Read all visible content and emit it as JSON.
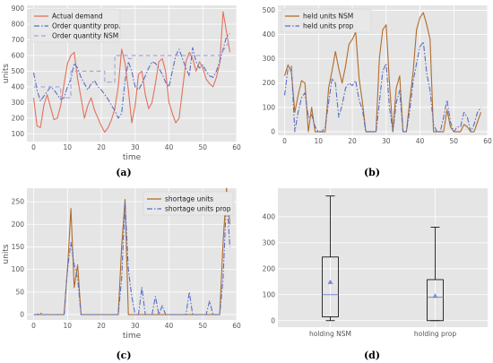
{
  "chart_data": [
    {
      "type": "line",
      "caption": "(a)",
      "xlabel": "time",
      "ylabel": "units",
      "xlim": [
        -2,
        60
      ],
      "ylim": [
        50,
        920
      ],
      "xticks": [
        0,
        10,
        20,
        30,
        40,
        50,
        60
      ],
      "yticks": [
        100,
        200,
        300,
        400,
        500,
        600,
        700,
        800,
        900
      ],
      "legend_position": "upper-left",
      "grid": true,
      "series": [
        {
          "name": "Actual demand",
          "color": "#e2725b",
          "style": "solid",
          "x": [
            0,
            1,
            2,
            3,
            4,
            5,
            6,
            7,
            8,
            9,
            10,
            11,
            12,
            13,
            14,
            15,
            16,
            17,
            18,
            19,
            20,
            21,
            22,
            23,
            24,
            25,
            26,
            27,
            28,
            29,
            30,
            31,
            32,
            33,
            34,
            35,
            36,
            37,
            38,
            39,
            40,
            41,
            42,
            43,
            44,
            45,
            46,
            47,
            48,
            49,
            50,
            51,
            52,
            53,
            54,
            55,
            56,
            57,
            58
          ],
          "values": [
            330,
            150,
            140,
            280,
            350,
            270,
            190,
            200,
            280,
            420,
            550,
            600,
            620,
            450,
            330,
            200,
            280,
            330,
            250,
            200,
            150,
            110,
            140,
            190,
            260,
            400,
            640,
            550,
            380,
            170,
            280,
            480,
            500,
            350,
            260,
            300,
            420,
            560,
            580,
            500,
            300,
            230,
            170,
            200,
            380,
            560,
            620,
            580,
            500,
            560,
            520,
            450,
            420,
            400,
            460,
            550,
            880,
            750,
            620
          ]
        },
        {
          "name": "Order quantity prop.",
          "color": "#5b6cc4",
          "style": "dashdot",
          "x": [
            0,
            1,
            2,
            3,
            4,
            5,
            6,
            7,
            8,
            9,
            10,
            11,
            12,
            13,
            14,
            15,
            16,
            17,
            18,
            19,
            20,
            21,
            22,
            23,
            24,
            25,
            26,
            27,
            28,
            29,
            30,
            31,
            32,
            33,
            34,
            35,
            36,
            37,
            38,
            39,
            40,
            41,
            42,
            43,
            44,
            45,
            46,
            47,
            48,
            49,
            50,
            51,
            52,
            53,
            54,
            55,
            56,
            57,
            58
          ],
          "values": [
            490,
            380,
            310,
            340,
            370,
            400,
            380,
            350,
            320,
            330,
            400,
            450,
            550,
            520,
            460,
            420,
            380,
            420,
            440,
            400,
            380,
            350,
            320,
            280,
            250,
            200,
            230,
            440,
            560,
            500,
            400,
            380,
            420,
            470,
            520,
            560,
            550,
            520,
            480,
            430,
            400,
            500,
            600,
            640,
            580,
            520,
            470,
            650,
            560,
            520,
            540,
            500,
            470,
            460,
            500,
            560,
            640,
            720,
            740
          ]
        },
        {
          "name": "Order quantity NSM",
          "color": "#a9a2dc",
          "style": "dashed",
          "x": [
            0,
            2,
            2,
            8,
            8,
            11,
            11,
            21,
            21,
            24,
            24,
            28,
            28,
            29,
            29,
            55,
            55,
            56,
            57,
            58
          ],
          "values": [
            400,
            400,
            400,
            400,
            330,
            330,
            500,
            500,
            430,
            430,
            600,
            600,
            580,
            580,
            600,
            600,
            600,
            630,
            660,
            700
          ]
        }
      ]
    },
    {
      "type": "line",
      "caption": "(b)",
      "xlabel": "",
      "ylabel": "",
      "xlim": [
        -2,
        60
      ],
      "ylim": [
        -15,
        520
      ],
      "xticks": [
        0,
        10,
        20,
        30,
        40,
        50,
        60
      ],
      "yticks": [
        0,
        100,
        200,
        300,
        400,
        500
      ],
      "legend_position": "upper-left",
      "grid": true,
      "series": [
        {
          "name": "held units NSM",
          "color": "#b06c2c",
          "style": "solid",
          "x": [
            0,
            1,
            2,
            3,
            4,
            5,
            6,
            7,
            8,
            9,
            10,
            11,
            12,
            13,
            14,
            15,
            16,
            17,
            18,
            19,
            20,
            21,
            22,
            23,
            24,
            25,
            26,
            27,
            28,
            29,
            30,
            31,
            32,
            33,
            34,
            35,
            36,
            37,
            38,
            39,
            40,
            41,
            42,
            43,
            44,
            45,
            46,
            47,
            48,
            49,
            50,
            51,
            52,
            53,
            54,
            55,
            56,
            57,
            58
          ],
          "values": [
            230,
            275,
            245,
            80,
            150,
            210,
            200,
            0,
            100,
            0,
            0,
            0,
            0,
            180,
            250,
            330,
            260,
            200,
            270,
            360,
            380,
            410,
            220,
            120,
            0,
            0,
            0,
            0,
            300,
            420,
            440,
            200,
            0,
            180,
            230,
            0,
            0,
            130,
            250,
            420,
            470,
            490,
            440,
            380,
            0,
            0,
            0,
            0,
            90,
            20,
            0,
            0,
            0,
            30,
            20,
            0,
            0,
            40,
            80
          ]
        },
        {
          "name": "held units prop",
          "color": "#5b6cc4",
          "style": "dashdot",
          "x": [
            0,
            1,
            2,
            3,
            4,
            5,
            6,
            7,
            8,
            9,
            10,
            11,
            12,
            13,
            14,
            15,
            16,
            17,
            18,
            19,
            20,
            21,
            22,
            23,
            24,
            25,
            26,
            27,
            28,
            29,
            30,
            31,
            32,
            33,
            34,
            35,
            36,
            37,
            38,
            39,
            40,
            41,
            42,
            43,
            44,
            45,
            46,
            47,
            48,
            49,
            50,
            51,
            52,
            53,
            54,
            55,
            56,
            57,
            58
          ],
          "values": [
            150,
            260,
            270,
            0,
            80,
            140,
            160,
            60,
            70,
            20,
            0,
            0,
            20,
            120,
            220,
            200,
            60,
            110,
            180,
            200,
            190,
            210,
            130,
            90,
            0,
            0,
            0,
            0,
            120,
            250,
            280,
            100,
            0,
            120,
            170,
            0,
            0,
            90,
            210,
            280,
            350,
            370,
            240,
            170,
            30,
            0,
            0,
            60,
            130,
            40,
            0,
            20,
            20,
            80,
            60,
            0,
            30,
            80,
            100
          ]
        }
      ]
    },
    {
      "type": "line",
      "caption": "(c)",
      "xlabel": "time",
      "ylabel": "units",
      "xlim": [
        -2,
        60
      ],
      "ylim": [
        -12,
        280
      ],
      "xticks": [
        0,
        10,
        20,
        30,
        40,
        50,
        60
      ],
      "yticks": [
        0,
        50,
        100,
        150,
        200,
        250
      ],
      "legend_position": "upper-right",
      "grid": true,
      "series": [
        {
          "name": "shortage units",
          "color": "#b06c2c",
          "style": "solid",
          "x": [
            0,
            1,
            2,
            3,
            4,
            5,
            6,
            7,
            8,
            9,
            10,
            11,
            12,
            13,
            14,
            15,
            16,
            17,
            18,
            19,
            20,
            21,
            22,
            23,
            24,
            25,
            26,
            27,
            28,
            29,
            30,
            31,
            32,
            33,
            34,
            35,
            36,
            37,
            38,
            39,
            40,
            41,
            42,
            43,
            44,
            45,
            46,
            47,
            48,
            49,
            50,
            51,
            52,
            53,
            54,
            55,
            56,
            57,
            58
          ],
          "values": [
            0,
            0,
            0,
            0,
            0,
            0,
            0,
            0,
            0,
            0,
            100,
            235,
            60,
            110,
            0,
            0,
            0,
            0,
            0,
            0,
            0,
            0,
            0,
            0,
            0,
            0,
            150,
            255,
            0,
            0,
            0,
            0,
            0,
            0,
            0,
            0,
            0,
            0,
            0,
            0,
            0,
            0,
            0,
            0,
            0,
            0,
            0,
            0,
            0,
            0,
            0,
            0,
            0,
            0,
            0,
            0,
            160,
            280,
            200
          ]
        },
        {
          "name": "shortage units prop",
          "color": "#5b6cc4",
          "style": "dashdot",
          "x": [
            0,
            1,
            2,
            3,
            4,
            5,
            6,
            7,
            8,
            9,
            10,
            11,
            12,
            13,
            14,
            15,
            16,
            17,
            18,
            19,
            20,
            21,
            22,
            23,
            24,
            25,
            26,
            27,
            28,
            29,
            30,
            31,
            32,
            33,
            34,
            35,
            36,
            37,
            38,
            39,
            40,
            41,
            42,
            43,
            44,
            45,
            46,
            47,
            48,
            49,
            50,
            51,
            52,
            53,
            54,
            55,
            56,
            57,
            58
          ],
          "values": [
            0,
            0,
            3,
            0,
            0,
            0,
            0,
            0,
            0,
            0,
            100,
            160,
            110,
            80,
            0,
            0,
            0,
            0,
            0,
            0,
            0,
            0,
            0,
            0,
            0,
            0,
            80,
            250,
            100,
            40,
            0,
            0,
            60,
            0,
            0,
            0,
            40,
            0,
            20,
            0,
            0,
            0,
            0,
            0,
            0,
            0,
            50,
            0,
            0,
            0,
            0,
            0,
            30,
            0,
            0,
            0,
            80,
            260,
            150
          ]
        }
      ]
    },
    {
      "type": "box",
      "caption": "(d)",
      "xlabel": "",
      "ylabel": "",
      "ylim": [
        -25,
        510
      ],
      "yticks": [
        0,
        100,
        200,
        300,
        400
      ],
      "grid": true,
      "categories": [
        "holding NSM",
        "holding prop"
      ],
      "boxes": [
        {
          "min": 0,
          "q1": 15,
          "median": 100,
          "q3": 245,
          "max": 480,
          "mean": 148
        },
        {
          "min": 0,
          "q1": 0,
          "median": 90,
          "q3": 158,
          "max": 360,
          "mean": 95
        }
      ],
      "median_color": "#7a8ad0",
      "mean_color": "#7a8ad0"
    }
  ]
}
